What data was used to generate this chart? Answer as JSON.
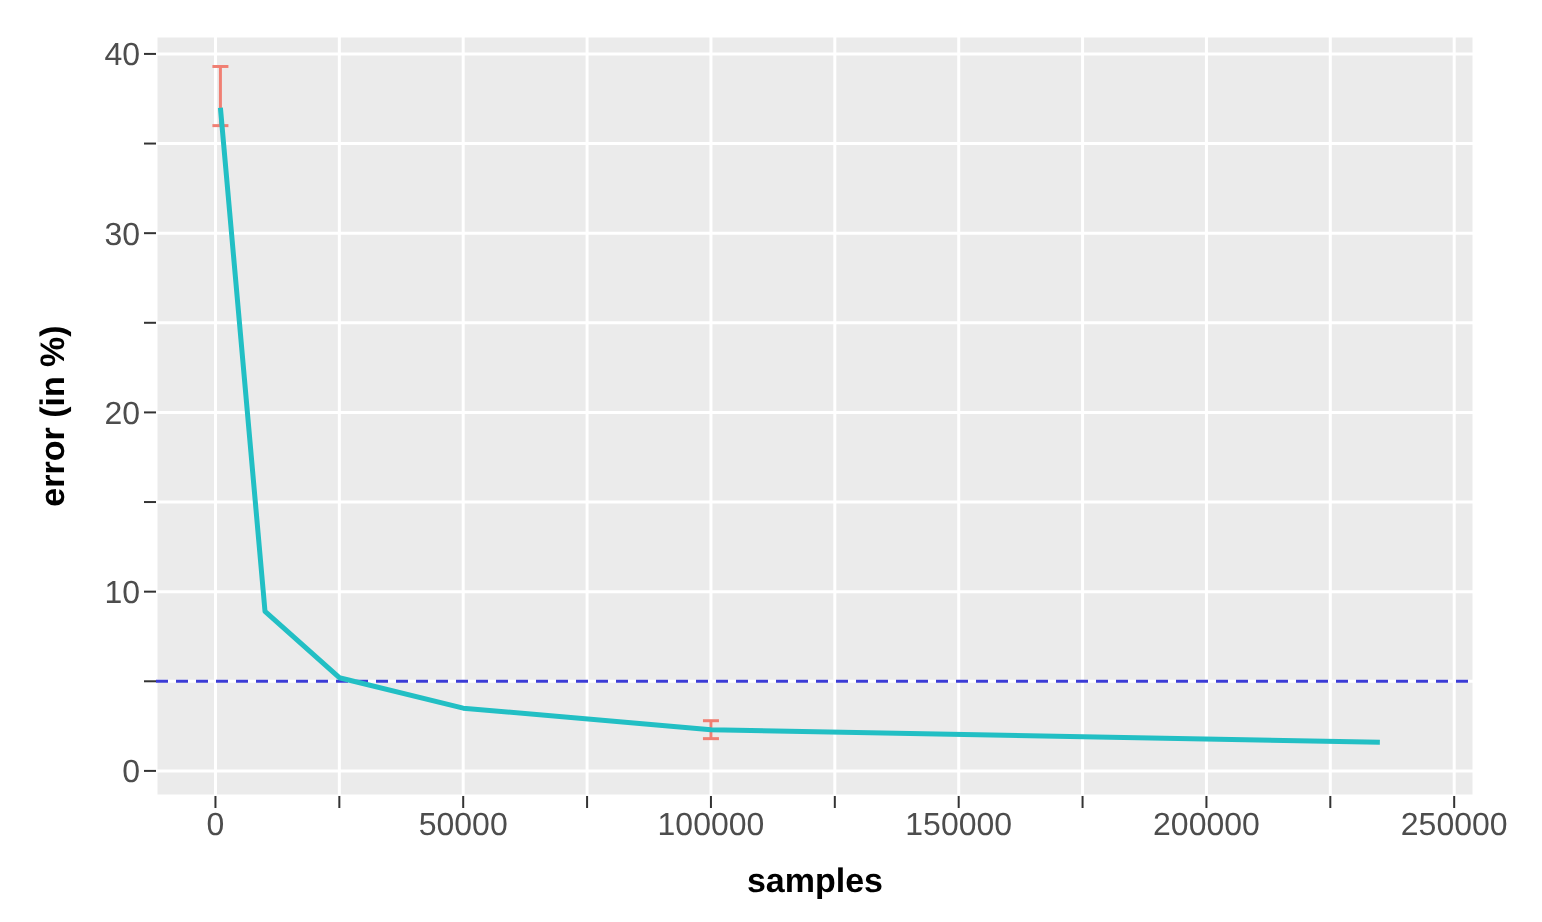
{
  "chart_data": {
    "type": "line",
    "xlabel": "samples",
    "ylabel": "error (in %)",
    "x": [
      1000,
      10000,
      25000,
      50000,
      100000,
      235000
    ],
    "series": [
      {
        "color": "#22bfc4",
        "values": [
          37,
          8.9,
          5.2,
          3.5,
          2.3,
          1.6
        ],
        "errors": [
          [
            36,
            39.3
          ],
          null,
          null,
          null,
          0.5,
          null
        ]
      }
    ],
    "xlim": [
      -12000,
      254000
    ],
    "xticks": [
      0,
      {
        "value": 25000,
        "label": null
      },
      50000,
      {
        "value": 75000,
        "label": null
      },
      100000,
      {
        "value": 125000,
        "label": null
      },
      150000,
      {
        "value": 175000,
        "label": null
      },
      200000,
      {
        "value": 225000,
        "label": null
      },
      250000
    ],
    "ylim": [
      -1.4,
      41
    ],
    "yticks": [
      0,
      {
        "value": 5,
        "label": null
      },
      10,
      {
        "value": 15,
        "label": null
      },
      20,
      {
        "value": 25,
        "label": null
      },
      30,
      {
        "value": 35,
        "label": null
      },
      40
    ],
    "ref_lines": [
      {
        "axis": "y",
        "value": 5,
        "color": "#3b3bd6",
        "line_style": "dashed"
      }
    ],
    "grid": true,
    "marker": "none",
    "line_style": "solid"
  }
}
